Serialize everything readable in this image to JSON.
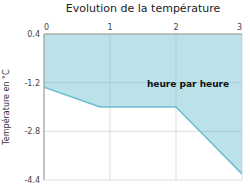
{
  "chart_data": {
    "type": "line",
    "title": "Evolution de la température",
    "ylabel": "Température en °C",
    "annotation": "heure par heure",
    "x": [
      0,
      0.85,
      2.0,
      3.0
    ],
    "values": [
      -1.35,
      -2.0,
      -2.0,
      -4.2
    ],
    "color": "#6bbece",
    "xlim": [
      0,
      3
    ],
    "ylim": [
      -4.4,
      0.4
    ],
    "xticks": [
      0,
      1,
      2,
      3
    ],
    "yticks": [
      0.4,
      -1.2,
      -2.8,
      -4.4
    ],
    "grid": true
  }
}
